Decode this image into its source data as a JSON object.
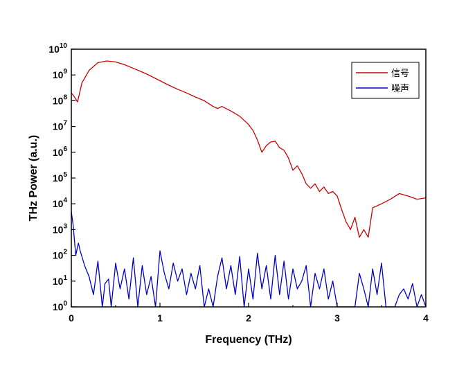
{
  "chart_data": {
    "type": "line",
    "xlabel": "Frequency (THz)",
    "ylabel": "THz Power (a.u.)",
    "xlim": [
      0,
      4
    ],
    "ylim": [
      1,
      10000000000
    ],
    "y_scale": "log",
    "x_ticks": [
      {
        "v": 0,
        "label": "0"
      },
      {
        "v": 1,
        "label": "1"
      },
      {
        "v": 2,
        "label": "2"
      },
      {
        "v": 3,
        "label": "3"
      },
      {
        "v": 4,
        "label": "4"
      }
    ],
    "y_ticks": [
      {
        "exp": 0,
        "base": "10",
        "sup": "0"
      },
      {
        "exp": 1,
        "base": "10",
        "sup": "1"
      },
      {
        "exp": 2,
        "base": "10",
        "sup": "2"
      },
      {
        "exp": 3,
        "base": "10",
        "sup": "3"
      },
      {
        "exp": 4,
        "base": "10",
        "sup": "4"
      },
      {
        "exp": 5,
        "base": "10",
        "sup": "5"
      },
      {
        "exp": 6,
        "base": "10",
        "sup": "6"
      },
      {
        "exp": 7,
        "base": "10",
        "sup": "7"
      },
      {
        "exp": 8,
        "base": "10",
        "sup": "8"
      },
      {
        "exp": 9,
        "base": "10",
        "sup": "9"
      },
      {
        "exp": 10,
        "base": "10",
        "sup": "10"
      }
    ],
    "legend_position": "top-right",
    "grid": false,
    "series": [
      {
        "name": "信号",
        "color": "#cc0000",
        "x": [
          0.0,
          0.03,
          0.07,
          0.12,
          0.2,
          0.3,
          0.4,
          0.5,
          0.6,
          0.7,
          0.8,
          0.9,
          1.0,
          1.1,
          1.2,
          1.3,
          1.4,
          1.5,
          1.6,
          1.65,
          1.7,
          1.8,
          1.9,
          2.0,
          2.05,
          2.1,
          2.15,
          2.2,
          2.25,
          2.3,
          2.35,
          2.4,
          2.45,
          2.5,
          2.55,
          2.6,
          2.65,
          2.7,
          2.75,
          2.8,
          2.85,
          2.9,
          2.95,
          3.0,
          3.05,
          3.1,
          3.15,
          3.2,
          3.25,
          3.3,
          3.35,
          3.4,
          3.5,
          3.6,
          3.7,
          3.8,
          3.9,
          4.0
        ],
        "y": [
          200000000,
          150000000,
          90000000,
          500000000,
          1500000000,
          3000000000,
          3500000000,
          3200000000,
          2500000000,
          1800000000,
          1300000000,
          900000000,
          600000000,
          400000000,
          280000000,
          200000000,
          140000000,
          100000000,
          60000000,
          50000000,
          60000000,
          40000000,
          25000000,
          12000000,
          7000000,
          3000000,
          1000000,
          1800000,
          2500000,
          2700000,
          1500000,
          1200000,
          600000,
          200000,
          300000,
          150000,
          60000,
          40000,
          60000,
          30000,
          45000,
          25000,
          30000,
          20000,
          6000,
          2000,
          1000,
          3000,
          500,
          1000,
          500,
          7000,
          10000,
          15000,
          25000,
          20000,
          15000,
          17000
        ]
      },
      {
        "name": "噪声",
        "color": "#0000cc",
        "x": [
          0.0,
          0.02,
          0.05,
          0.08,
          0.1,
          0.15,
          0.2,
          0.25,
          0.3,
          0.35,
          0.38,
          0.42,
          0.45,
          0.5,
          0.55,
          0.6,
          0.65,
          0.7,
          0.75,
          0.8,
          0.85,
          0.9,
          0.95,
          1.0,
          1.05,
          1.1,
          1.15,
          1.2,
          1.25,
          1.3,
          1.35,
          1.4,
          1.45,
          1.5,
          1.55,
          1.6,
          1.65,
          1.7,
          1.75,
          1.8,
          1.85,
          1.9,
          1.95,
          2.0,
          2.05,
          2.1,
          2.15,
          2.2,
          2.25,
          2.3,
          2.35,
          2.4,
          2.45,
          2.5,
          2.55,
          2.6,
          2.65,
          2.7,
          2.75,
          2.8,
          2.85,
          2.9,
          2.95,
          3.0,
          3.05,
          3.1,
          3.15,
          3.2,
          3.25,
          3.3,
          3.35,
          3.4,
          3.45,
          3.5,
          3.55,
          3.6,
          3.65,
          3.7,
          3.75,
          3.8,
          3.85,
          3.9,
          3.95,
          4.0
        ],
        "y": [
          5000,
          1500,
          100,
          300,
          150,
          40,
          15,
          3,
          60,
          1,
          8,
          12,
          1,
          50,
          5,
          30,
          2,
          80,
          1,
          40,
          3,
          15,
          1,
          150,
          20,
          5,
          50,
          10,
          30,
          3,
          20,
          5,
          40,
          1,
          5,
          1,
          15,
          80,
          5,
          40,
          3,
          90,
          1,
          30,
          2,
          120,
          5,
          40,
          2,
          100,
          3,
          60,
          2,
          30,
          5,
          10,
          40,
          1,
          20,
          5,
          30,
          2,
          10,
          1,
          1,
          1,
          1,
          1,
          20,
          5,
          1,
          30,
          3,
          50,
          1,
          1,
          1,
          3,
          5,
          2,
          8,
          1,
          3,
          1
        ]
      }
    ]
  }
}
